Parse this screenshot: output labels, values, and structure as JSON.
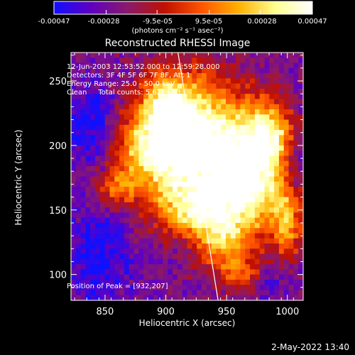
{
  "colorbar": {
    "tick_labels": [
      "-0.00047",
      "-0.00028",
      "-9.5e-05",
      "9.5e-05",
      "0.00028",
      "0.00047"
    ],
    "tick_values": [
      -0.00047,
      -0.00028,
      -9.5e-05,
      9.5e-05,
      0.00028,
      0.00047
    ],
    "units": "(photons cm⁻² s⁻¹ asec⁻²)",
    "colors": [
      "#1010ff",
      "#6000c0",
      "#8a1a6a",
      "#c01000",
      "#ff5500",
      "#ffb000",
      "#ffff90",
      "#ffffff"
    ]
  },
  "chart_data": {
    "type": "heatmap",
    "title": "Reconstructed RHESSI Image",
    "xlabel": "Heliocentric X (arcsec)",
    "ylabel": "Heliocentric Y (arcsec)",
    "xlim": [
      822,
      1013
    ],
    "ylim": [
      80,
      272
    ],
    "xticks": [
      850,
      900,
      950,
      1000
    ],
    "yticks": [
      100,
      150,
      200,
      250
    ],
    "annotations": [
      "12-Jun-2003 12:53:52.000 to 12:59:28.000",
      "Detectors: 3F 4F 5F 6F 7F 8F, Att 1",
      "Energy Range: 25.0 - 50.0 keV",
      "Clean     Total counts: 5.62E+03"
    ],
    "peak_label": "Position of Peak = [932,207]",
    "peak": [
      932,
      207
    ],
    "limb_line": [
      [
        910,
        272
      ],
      [
        943,
        80
      ]
    ],
    "sources": [
      {
        "x": 925,
        "y": 205,
        "sx": 30,
        "sy": 35,
        "a": 1.0
      },
      {
        "x": 890,
        "y": 198,
        "sx": 22,
        "sy": 20,
        "a": 0.75
      },
      {
        "x": 968,
        "y": 170,
        "sx": 24,
        "sy": 30,
        "a": 0.95
      },
      {
        "x": 985,
        "y": 210,
        "sx": 14,
        "sy": 18,
        "a": 0.7
      },
      {
        "x": 900,
        "y": 235,
        "sx": 14,
        "sy": 14,
        "a": 0.55
      },
      {
        "x": 920,
        "y": 150,
        "sx": 22,
        "sy": 14,
        "a": 0.6
      },
      {
        "x": 945,
        "y": 125,
        "sx": 14,
        "sy": 16,
        "a": 0.5
      },
      {
        "x": 860,
        "y": 168,
        "sx": 12,
        "sy": 10,
        "a": 0.45
      },
      {
        "x": 1000,
        "y": 140,
        "sx": 8,
        "sy": 20,
        "a": 0.55
      },
      {
        "x": 965,
        "y": 100,
        "sx": 14,
        "sy": 10,
        "a": 0.4
      }
    ],
    "cold_sources": [
      {
        "x": 840,
        "y": 215,
        "sx": 14,
        "sy": 20,
        "a": 0.5
      },
      {
        "x": 845,
        "y": 115,
        "sx": 18,
        "sy": 25,
        "a": 0.45
      },
      {
        "x": 1005,
        "y": 185,
        "sx": 8,
        "sy": 18,
        "a": 0.4
      },
      {
        "x": 985,
        "y": 95,
        "sx": 10,
        "sy": 10,
        "a": 0.35
      }
    ]
  },
  "footer": {
    "date": "2-May-2022 13:40"
  }
}
